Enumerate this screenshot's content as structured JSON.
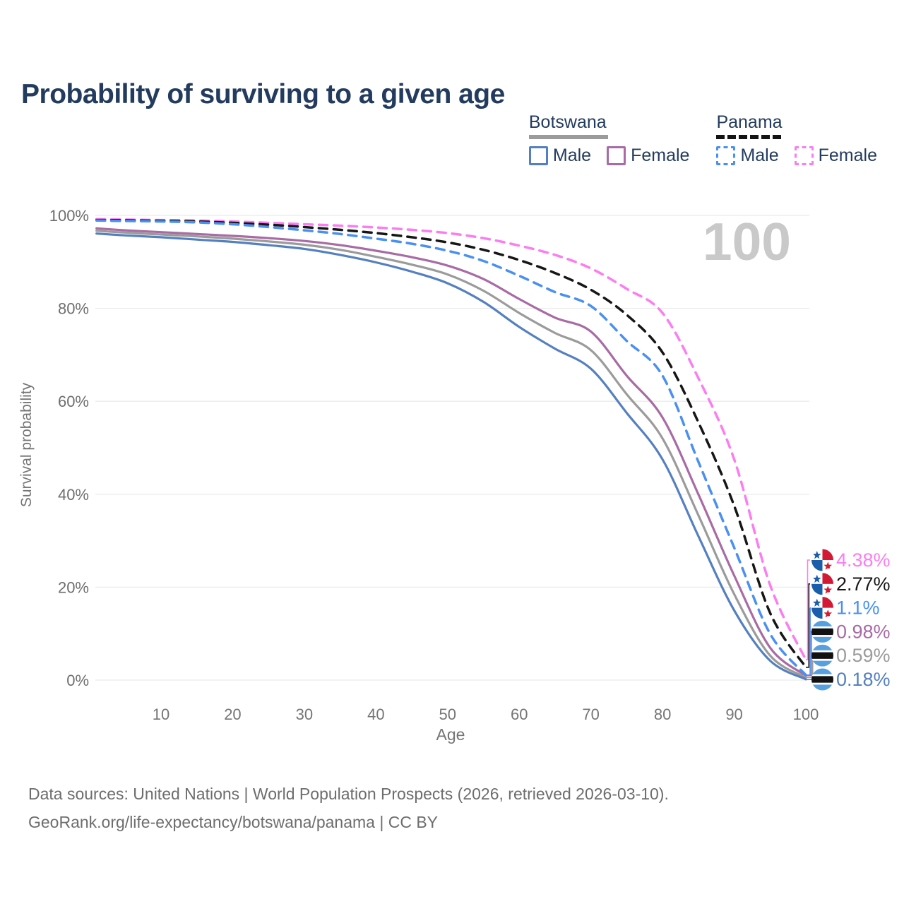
{
  "page": {
    "title": "Probability of surviving to a given age",
    "age_counter": "100"
  },
  "legend": {
    "groups": [
      {
        "name": "Botswana",
        "line_style": "solid",
        "underline_color": "#9b9b9b",
        "items": [
          {
            "key": "botswana-male",
            "label": "Male"
          },
          {
            "key": "botswana-female",
            "label": "Female"
          }
        ]
      },
      {
        "name": "Panama",
        "line_style": "dashed",
        "underline_color": "#141414",
        "items": [
          {
            "key": "panama-male",
            "label": "Male"
          },
          {
            "key": "panama-female",
            "label": "Female"
          }
        ]
      }
    ]
  },
  "chart_data": {
    "type": "line",
    "title": "Probability of surviving to a given age",
    "xlabel": "Age",
    "ylabel": "Survival probability",
    "xlim": [
      1,
      100
    ],
    "ylim": [
      0,
      100
    ],
    "grid": "horizontal",
    "x_ticks": [
      10,
      20,
      30,
      40,
      50,
      60,
      70,
      80,
      90,
      100
    ],
    "y_ticks": [
      {
        "value": 0,
        "label": "0%"
      },
      {
        "value": 20,
        "label": "20%"
      },
      {
        "value": 40,
        "label": "40%"
      },
      {
        "value": 60,
        "label": "60%"
      },
      {
        "value": 80,
        "label": "80%"
      },
      {
        "value": 100,
        "label": "100%"
      }
    ],
    "ages": [
      1,
      5,
      10,
      15,
      20,
      25,
      30,
      35,
      40,
      45,
      50,
      55,
      60,
      65,
      70,
      75,
      80,
      85,
      90,
      95,
      100
    ],
    "series": [
      {
        "key": "panama-female",
        "country": "Panama",
        "sex": "Female",
        "color": "#fb7df0",
        "line_style": "dashed",
        "flag": "panama-flag",
        "end_label": "4.38%",
        "end_value": 4.38,
        "values": [
          99.2,
          99.1,
          99.0,
          98.9,
          98.7,
          98.4,
          98.1,
          97.8,
          97.4,
          96.9,
          96.2,
          95.1,
          93.5,
          91.5,
          88.6,
          84.2,
          79.0,
          65.0,
          47.5,
          20.5,
          4.38
        ]
      },
      {
        "key": "panama-both",
        "country": "Panama",
        "sex": "Both sexes",
        "color": "#161616",
        "line_style": "dashed",
        "flag": "panama-flag",
        "end_label": "2.77%",
        "end_value": 2.77,
        "values": [
          99.0,
          98.95,
          98.85,
          98.7,
          98.4,
          98.0,
          97.5,
          96.9,
          96.2,
          95.3,
          94.2,
          92.6,
          90.4,
          87.6,
          84.0,
          78.6,
          70.5,
          55.5,
          37.5,
          14.5,
          2.77
        ]
      },
      {
        "key": "panama-male",
        "country": "Panama",
        "sex": "Male",
        "color": "#4a90f2",
        "line_style": "dashed",
        "flag": "panama-flag",
        "end_label": "1.1%",
        "end_value": 1.1,
        "values": [
          98.9,
          98.8,
          98.7,
          98.5,
          98.1,
          97.5,
          96.8,
          96.0,
          95.0,
          93.9,
          92.4,
          90.2,
          87.0,
          83.5,
          80.5,
          73.0,
          65.5,
          47.0,
          28.5,
          10.0,
          1.1
        ]
      },
      {
        "key": "botswana-female",
        "country": "Botswana",
        "sex": "Female",
        "color": "#a86ba4",
        "line_style": "solid",
        "flag": "botswana-flag",
        "end_label": "0.98%",
        "end_value": 0.98,
        "values": [
          97.2,
          96.8,
          96.4,
          96.0,
          95.6,
          95.1,
          94.5,
          93.6,
          92.4,
          91.0,
          89.2,
          86.3,
          82.0,
          78.0,
          75.0,
          65.5,
          56.5,
          40.0,
          22.5,
          7.0,
          0.98
        ]
      },
      {
        "key": "botswana-both",
        "country": "Botswana",
        "sex": "Both sexes",
        "color": "#9b9b9b",
        "line_style": "solid",
        "flag": "botswana-flag",
        "end_label": "0.59%",
        "end_value": 0.59,
        "values": [
          96.7,
          96.3,
          95.9,
          95.5,
          95.0,
          94.4,
          93.7,
          92.6,
          91.1,
          89.4,
          87.3,
          83.8,
          79.0,
          74.7,
          71.0,
          61.5,
          52.0,
          35.5,
          18.5,
          5.3,
          0.59
        ]
      },
      {
        "key": "botswana-male",
        "country": "Botswana",
        "sex": "Male",
        "color": "#5580c0",
        "line_style": "solid",
        "flag": "botswana-flag",
        "end_label": "0.18%",
        "end_value": 0.18,
        "values": [
          96.1,
          95.7,
          95.3,
          94.8,
          94.3,
          93.6,
          92.8,
          91.5,
          89.9,
          87.9,
          85.4,
          81.4,
          76.0,
          71.3,
          67.0,
          57.5,
          47.5,
          31.0,
          15.0,
          4.2,
          0.18
        ]
      }
    ],
    "flag_colors": {
      "panama_red": "#d21a34",
      "panama_blue": "#1a5dab",
      "botswana_blue": "#56a0e0",
      "botswana_black": "#111111"
    }
  },
  "footer": {
    "line1": "Data sources: United Nations | World Population Prospects (2026, retrieved 2026-03-10).",
    "line2": "GeoRank.org/life-expectancy/botswana/panama | CC BY"
  }
}
